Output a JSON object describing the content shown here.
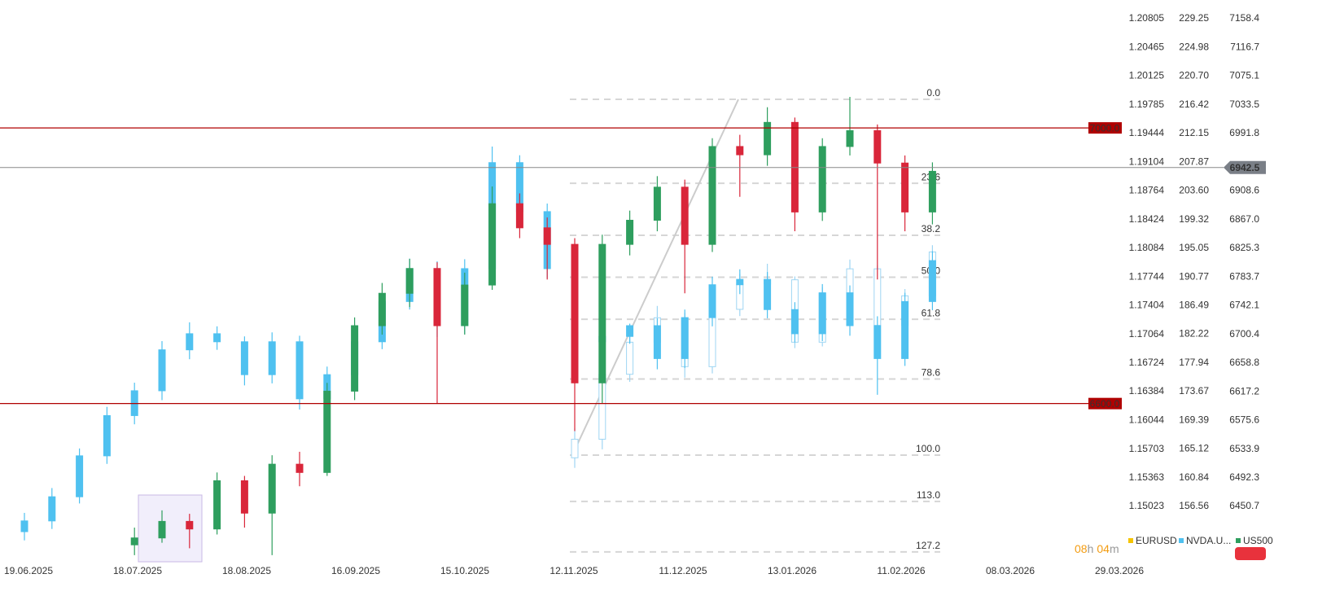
{
  "chart_data": {
    "type": "candlestick",
    "x_labels": [
      "19.06.2025",
      "18.07.2025",
      "18.08.2025",
      "16.09.2025",
      "15.10.2025",
      "12.11.2025",
      "11.12.2025",
      "13.01.2026",
      "11.02.2026",
      "08.03.2026",
      "29.03.2026"
    ],
    "axes": [
      {
        "ylim": [
          1.14367,
          1.21027
        ],
        "yticks": [
          1.20805,
          1.20465,
          1.20125,
          1.19785,
          1.19444,
          1.19104,
          1.18764,
          1.18424,
          1.18084,
          1.17744,
          1.17404,
          1.17064,
          1.16724,
          1.16384,
          1.16044,
          1.15703,
          1.15363,
          1.15023
        ]
      },
      {
        "ylim": [
          148.31,
          232.04
        ],
        "yticks": [
          229.25,
          224.98,
          {
            "value": 220.7,
            "label": "220.70"
          },
          216.42,
          212.15,
          207.87,
          {
            "value": 203.6,
            "label": "203.60"
          },
          199.32,
          195.05,
          190.77,
          186.49,
          182.22,
          177.94,
          173.67,
          169.39,
          165.12,
          160.84,
          156.56
        ]
      },
      {
        "ylim": [
          6370.4,
          7185.6
        ],
        "yticks": [
          7158.4,
          7116.7,
          7075.1,
          7033.5,
          6991.8,
          6908.6,
          {
            "value": 6867,
            "label": "6867.0"
          },
          6825.3,
          6783.7,
          6742.1,
          6700.4,
          6658.8,
          6617.2,
          6575.6,
          6533.9,
          6492.3,
          6450.7
        ]
      }
    ],
    "series": [
      {
        "name": "EURUSD",
        "axis": 0,
        "color": "#f5c400",
        "style": "hollow",
        "candle_color": "#9fd6f3",
        "open": [
          null,
          null,
          null,
          null,
          null,
          null,
          null,
          null,
          null,
          null,
          null,
          null,
          null,
          null,
          null,
          null,
          null,
          null,
          null,
          null,
          1.156,
          1.1582,
          1.1659,
          1.1697,
          1.1726,
          1.1668,
          1.1736,
          1.1766,
          1.1771,
          1.1697,
          1.1755,
          1.1784,
          1.1717,
          1.1752
        ],
        "high": [
          null,
          null,
          null,
          null,
          null,
          null,
          null,
          null,
          null,
          null,
          null,
          null,
          null,
          null,
          null,
          null,
          null,
          null,
          null,
          null,
          1.1595,
          1.1668,
          1.171,
          1.174,
          1.1732,
          1.1745,
          1.1778,
          1.179,
          1.1775,
          1.1762,
          1.1795,
          1.1788,
          1.176,
          1.1812
        ],
        "low": [
          null,
          null,
          null,
          null,
          null,
          null,
          null,
          null,
          null,
          null,
          null,
          null,
          null,
          null,
          null,
          null,
          null,
          null,
          null,
          null,
          1.1548,
          1.157,
          1.165,
          1.1688,
          1.1655,
          1.166,
          1.1728,
          1.1758,
          1.169,
          1.1692,
          1.1748,
          1.1705,
          1.171,
          1.1745
        ],
        "close": [
          null,
          null,
          null,
          null,
          null,
          null,
          null,
          null,
          null,
          null,
          null,
          null,
          null,
          null,
          null,
          null,
          null,
          null,
          null,
          null,
          1.1582,
          1.1659,
          1.1697,
          1.1726,
          1.1668,
          1.1736,
          1.1766,
          1.1771,
          1.1697,
          1.1755,
          1.1784,
          1.1717,
          1.1752,
          1.1804
        ]
      },
      {
        "name": "NVDA.U...",
        "axis": 1,
        "color": "#4fc1f0",
        "style": "filled",
        "candle_color": "#4fc1f0",
        "open": [
          152.8,
          154.4,
          158.0,
          164.1,
          170.1,
          173.8,
          179.9,
          182.3,
          181.1,
          176.2,
          181.1,
          172.6,
          176.2,
          181.1,
          187.1,
          192.0,
          183.5,
          192.0,
          207.8,
          200.5,
          192.0,
          181.1,
          181.9,
          183.5,
          178.6,
          184.7,
          189.6,
          190.4,
          185.9,
          182.3,
          188.4,
          183.5,
          178.6,
          187.1
        ],
        "high": [
          155.6,
          159.3,
          165.2,
          171.4,
          175.0,
          181.2,
          184.0,
          183.4,
          181.9,
          182.5,
          182.0,
          177.4,
          182.6,
          188.3,
          193.5,
          193.1,
          193.4,
          210.2,
          208.9,
          201.7,
          192.9,
          183.6,
          183.8,
          184.6,
          185.9,
          190.8,
          191.9,
          191.5,
          187.0,
          189.7,
          189.5,
          184.9,
          188.4,
          194.6
        ],
        "low": [
          151.5,
          153.2,
          157.0,
          162.9,
          168.8,
          172.4,
          178.5,
          179.9,
          174.6,
          174.9,
          171.0,
          171.4,
          175.1,
          180.0,
          185.9,
          181.8,
          182.3,
          191.0,
          199.0,
          190.6,
          177.5,
          179.8,
          180.8,
          177.0,
          177.2,
          183.4,
          188.2,
          184.6,
          181.0,
          181.2,
          182.0,
          173.2,
          177.5,
          185.8
        ],
        "close": [
          154.4,
          158.0,
          164.1,
          170.1,
          173.8,
          179.9,
          182.3,
          181.1,
          176.2,
          181.1,
          172.6,
          176.2,
          181.1,
          187.1,
          192.0,
          183.5,
          192.0,
          207.8,
          200.5,
          192.0,
          181.1,
          181.9,
          183.5,
          178.6,
          184.7,
          189.6,
          190.4,
          185.9,
          182.3,
          188.4,
          183.5,
          178.6,
          187.1,
          193.2
        ]
      },
      {
        "name": "US500",
        "axis": 2,
        "color": "#2e9e5e",
        "style": "updown",
        "up_color": "#2e9e5e",
        "down_color": "#d9263a",
        "open": [
          null,
          null,
          null,
          null,
          6395,
          6405,
          6429,
          6418,
          6488,
          6441,
          6512,
          6500,
          6618,
          6713,
          6760,
          6796,
          6713,
          6772,
          6890,
          6855,
          6831,
          6630,
          6831,
          6866,
          6914,
          6831,
          6973,
          6961,
          7008,
          6878,
          6973,
          6996,
          6949,
          6878
        ],
        "high": [
          null,
          null,
          null,
          null,
          6420,
          6445,
          6440,
          6500,
          6495,
          6525,
          6530,
          6630,
          6725,
          6775,
          6810,
          6805,
          6790,
          6915,
          6905,
          6870,
          6840,
          6845,
          6880,
          6930,
          6925,
          6985,
          6990,
          7030,
          7015,
          6985,
          7045,
          7005,
          6960,
          6950
        ],
        "low": [
          null,
          null,
          null,
          null,
          6380,
          6398,
          6390,
          6410,
          6420,
          6380,
          6480,
          6495,
          6605,
          6700,
          6740,
          6600,
          6700,
          6765,
          6840,
          6780,
          6560,
          6600,
          6815,
          6850,
          6760,
          6820,
          6900,
          6945,
          6850,
          6865,
          6960,
          6780,
          6850,
          6860
        ],
        "close": [
          null,
          null,
          null,
          null,
          6405,
          6429,
          6418,
          6488,
          6441,
          6512,
          6500,
          6618,
          6713,
          6760,
          6796,
          6713,
          6772,
          6890,
          6855,
          6831,
          6630,
          6831,
          6866,
          6914,
          6831,
          6973,
          6961,
          7008,
          6878,
          6973,
          6996,
          6949,
          6878,
          6937
        ]
      }
    ],
    "hlines": [
      {
        "value": 7000,
        "label": "7000.0",
        "color": "#b00000"
      },
      {
        "value": 6600,
        "label": "6600.0",
        "color": "#b00000"
      }
    ],
    "last_price": 6942.5,
    "fib": {
      "high": 7041.4,
      "low": 6525.1,
      "levels": [
        {
          "value": 0,
          "label": "0.0"
        },
        23.6,
        38.2,
        {
          "value": 50,
          "label": "50.0"
        },
        61.8,
        78.6,
        {
          "value": 100,
          "label": "100.0"
        },
        {
          "value": 113,
          "label": "113.0"
        },
        127.2
      ]
    },
    "timer": {
      "hours": "08",
      "hour_unit": "h",
      "minutes": "04",
      "minute_unit": "m"
    }
  }
}
